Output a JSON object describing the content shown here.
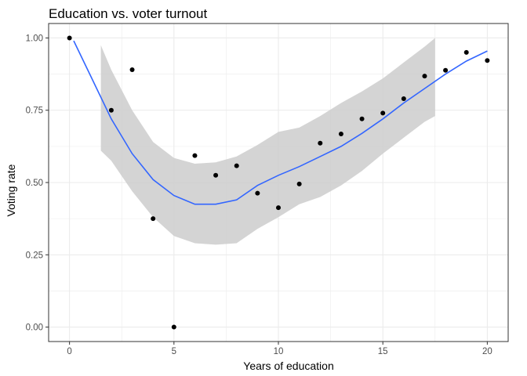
{
  "chart_data": {
    "type": "scatter",
    "title": "Education vs. voter turnout",
    "xlabel": "Years of education",
    "ylabel": "Voting rate",
    "xlim": [
      -1,
      21
    ],
    "ylim": [
      -0.05,
      1.05
    ],
    "x_ticks": [
      0,
      5,
      10,
      15,
      20
    ],
    "x_tick_labels": [
      "0",
      "5",
      "10",
      "15",
      "20"
    ],
    "y_ticks": [
      0,
      0.25,
      0.5,
      0.75,
      1
    ],
    "y_tick_labels": [
      "0.00",
      "0.25",
      "0.50",
      "0.75",
      "1.00"
    ],
    "grid": true,
    "legend": "none",
    "points": [
      {
        "x": 0,
        "y": 1.0
      },
      {
        "x": 2,
        "y": 0.75
      },
      {
        "x": 3,
        "y": 0.89
      },
      {
        "x": 4,
        "y": 0.375
      },
      {
        "x": 5,
        "y": 0.0
      },
      {
        "x": 6,
        "y": 0.593
      },
      {
        "x": 7,
        "y": 0.525
      },
      {
        "x": 8,
        "y": 0.558
      },
      {
        "x": 9,
        "y": 0.463
      },
      {
        "x": 10,
        "y": 0.413
      },
      {
        "x": 11,
        "y": 0.495
      },
      {
        "x": 12,
        "y": 0.636
      },
      {
        "x": 13,
        "y": 0.668
      },
      {
        "x": 14,
        "y": 0.72
      },
      {
        "x": 15,
        "y": 0.74
      },
      {
        "x": 16,
        "y": 0.79
      },
      {
        "x": 17,
        "y": 0.868
      },
      {
        "x": 18,
        "y": 0.888
      },
      {
        "x": 19,
        "y": 0.95
      },
      {
        "x": 20,
        "y": 0.922
      }
    ],
    "smooth_line": {
      "x": [
        0.2,
        1,
        2,
        3,
        4,
        5,
        6,
        7,
        8,
        9,
        10,
        11,
        12,
        13,
        14,
        15,
        16,
        17,
        18,
        19,
        20
      ],
      "y": [
        0.99,
        0.87,
        0.72,
        0.6,
        0.51,
        0.455,
        0.425,
        0.425,
        0.44,
        0.49,
        0.525,
        0.555,
        0.59,
        0.625,
        0.67,
        0.72,
        0.775,
        0.825,
        0.875,
        0.92,
        0.955
      ]
    },
    "confidence_band": {
      "x": [
        1.5,
        2,
        3,
        4,
        5,
        6,
        7,
        8,
        9,
        10,
        11,
        12,
        13,
        14,
        15,
        16,
        17,
        17.5
      ],
      "lower": [
        0.61,
        0.575,
        0.47,
        0.38,
        0.315,
        0.29,
        0.285,
        0.29,
        0.34,
        0.38,
        0.425,
        0.45,
        0.49,
        0.54,
        0.6,
        0.655,
        0.71,
        0.73
      ],
      "upper": [
        0.975,
        0.89,
        0.75,
        0.64,
        0.585,
        0.565,
        0.57,
        0.59,
        0.63,
        0.675,
        0.69,
        0.73,
        0.775,
        0.815,
        0.86,
        0.915,
        0.97,
        1.0
      ]
    },
    "colors": {
      "points": "#000000",
      "line": "#3366FF",
      "band": "#cccccc",
      "grid": "#ebebeb",
      "panel_border": "#333333",
      "tick_label": "#4d4d4d"
    }
  }
}
